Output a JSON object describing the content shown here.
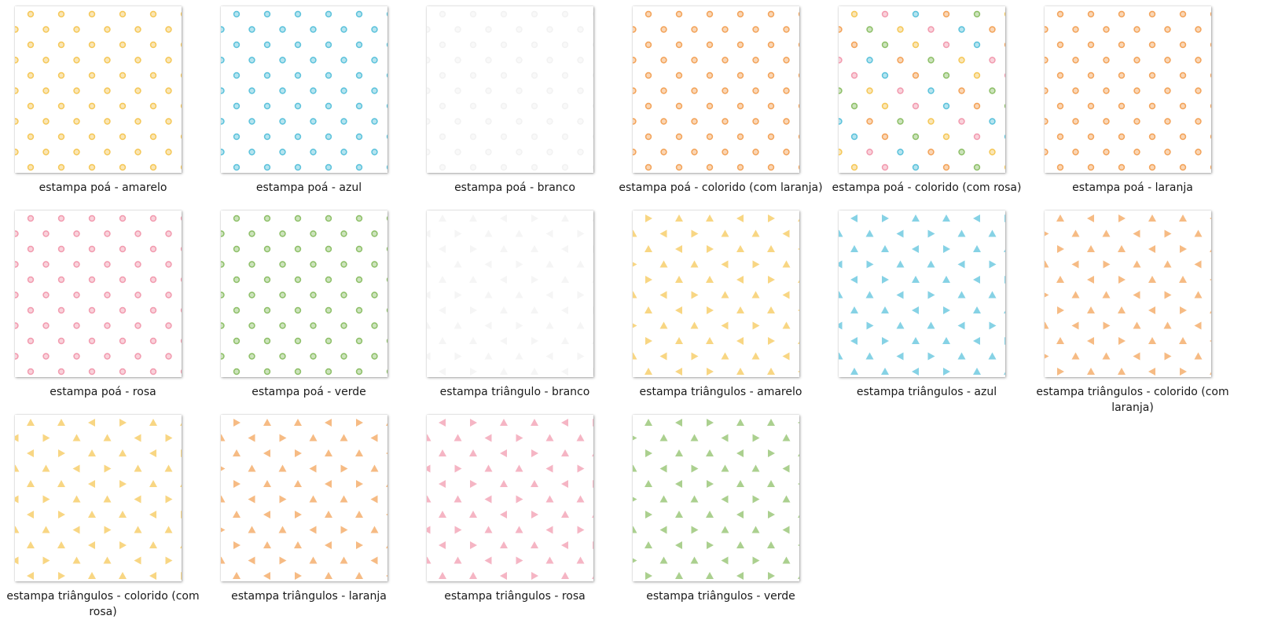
{
  "files": [
    {
      "name": "estampa poá - amarelo",
      "pattern": "dots",
      "colors": [
        "#f5c85a"
      ]
    },
    {
      "name": "estampa poá - azul",
      "pattern": "dots",
      "colors": [
        "#5ec3dc"
      ]
    },
    {
      "name": "estampa poá - branco",
      "pattern": "dots",
      "colors": [
        "#f2f2f2"
      ]
    },
    {
      "name": "estampa poá - colorido (com laranja)",
      "pattern": "dots",
      "colors": [
        "#f5c85a",
        "#5ec3dc",
        "#8fc06a",
        "#f3a45b"
      ]
    },
    {
      "name": "estampa poá - colorido (com rosa)",
      "pattern": "dots",
      "colors": [
        "#f5c85a",
        "#5ec3dc",
        "#8fc06a",
        "#f29cb0",
        "#f3a45b"
      ]
    },
    {
      "name": "estampa poá - laranja",
      "pattern": "dots",
      "colors": [
        "#f3a45b"
      ]
    },
    {
      "name": "estampa poá - rosa",
      "pattern": "dots",
      "colors": [
        "#f29cb0"
      ]
    },
    {
      "name": "estampa poá - verde",
      "pattern": "dots",
      "colors": [
        "#8fc06a"
      ]
    },
    {
      "name": "estampa triângulo - branco",
      "pattern": "triangles",
      "colors": [
        "#f2f2f2"
      ]
    },
    {
      "name": "estampa triângulos - amarelo",
      "pattern": "triangles",
      "colors": [
        "#f5c85a"
      ]
    },
    {
      "name": "estampa triângulos - azul",
      "pattern": "triangles",
      "colors": [
        "#5ec3dc"
      ]
    },
    {
      "name": "estampa triângulos - colorido (com laranja)",
      "pattern": "triangles",
      "colors": [
        "#f5c85a",
        "#5ec3dc",
        "#8fc06a",
        "#f3a45b"
      ]
    },
    {
      "name": "estampa triângulos - colorido (com rosa)",
      "pattern": "triangles",
      "colors": [
        "#f5c85a",
        "#5ec3dc",
        "#8fc06a",
        "#f29cb0"
      ]
    },
    {
      "name": "estampa triângulos - laranja",
      "pattern": "triangles",
      "colors": [
        "#f3a45b"
      ]
    },
    {
      "name": "estampa triângulos - rosa",
      "pattern": "triangles",
      "colors": [
        "#f29cb0"
      ]
    },
    {
      "name": "estampa triângulos - verde",
      "pattern": "triangles",
      "colors": [
        "#8fc06a"
      ]
    }
  ]
}
